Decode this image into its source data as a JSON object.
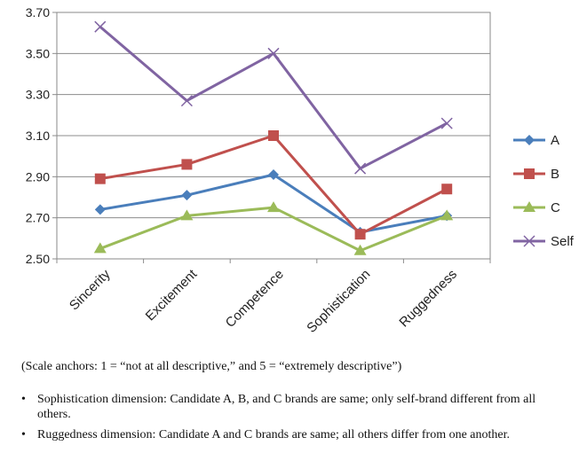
{
  "chart_data": {
    "type": "line",
    "categories": [
      "Sincerity",
      "Excitement",
      "Competence",
      "Sophistication",
      "Ruggedness"
    ],
    "ylim": [
      2.5,
      3.7
    ],
    "yticks": [
      "2.50",
      "2.70",
      "2.90",
      "3.10",
      "3.30",
      "3.50",
      "3.70"
    ],
    "grid": true,
    "legend_position": "right",
    "series": [
      {
        "name": "A",
        "color": "#4a7ebb",
        "marker": "diamond",
        "values": [
          2.74,
          2.81,
          2.91,
          2.63,
          2.71
        ]
      },
      {
        "name": "B",
        "color": "#c0504d",
        "marker": "square",
        "values": [
          2.89,
          2.96,
          3.1,
          2.62,
          2.84
        ]
      },
      {
        "name": "C",
        "color": "#9bbb59",
        "marker": "triangle",
        "values": [
          2.55,
          2.71,
          2.75,
          2.54,
          2.71
        ]
      },
      {
        "name": "Self",
        "color": "#8064a2",
        "marker": "x",
        "values": [
          3.63,
          3.27,
          3.5,
          2.94,
          3.16
        ]
      }
    ]
  },
  "note": "(Scale anchors: 1 = “not at all descriptive,” and 5 = “extremely descriptive”)",
  "bullets": [
    "Sophistication dimension: Candidate A, B, and C brands are same; only self-brand different from all others.",
    "Ruggedness dimension: Candidate A and C brands are same; all others differ from one another."
  ]
}
